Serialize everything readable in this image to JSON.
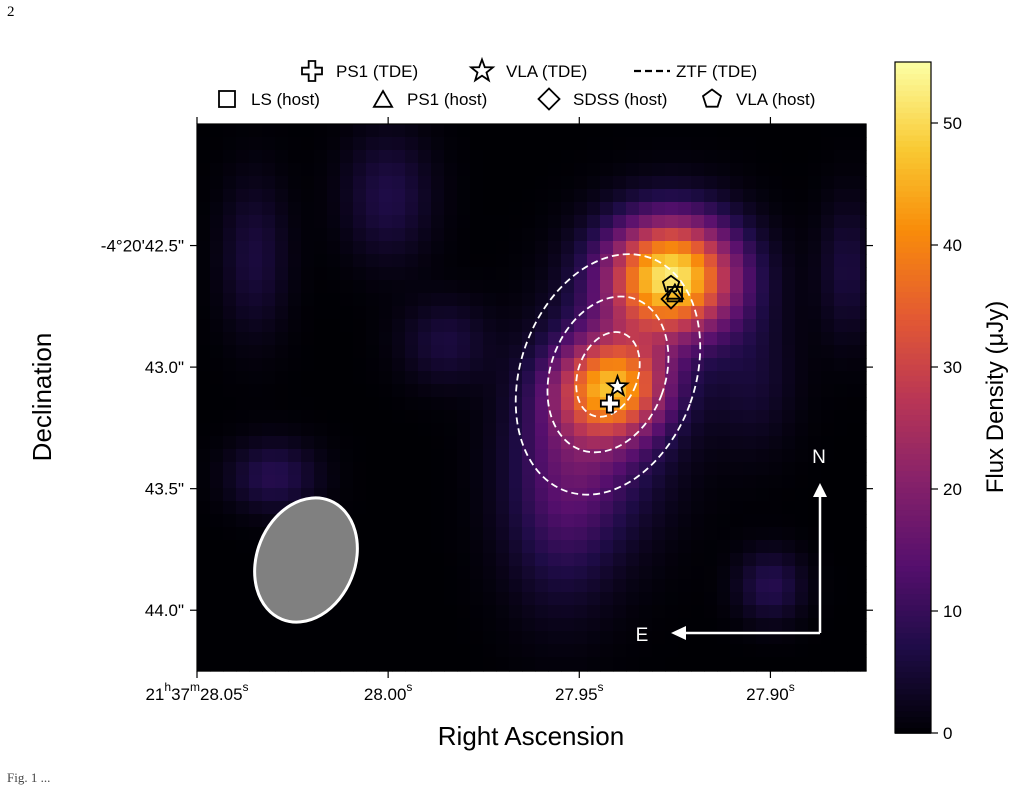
{
  "page": {
    "number": "2"
  },
  "caption": "Fig. 1 ...",
  "chart_data": {
    "type": "heatmap",
    "xlabel": "Right Ascension",
    "ylabel": "Declination",
    "x_ticks": [
      {
        "value": 28.05,
        "label_main": "21",
        "label_h": "h",
        "label_mid": "37",
        "label_m": "m",
        "label_sec": "28.05",
        "label_s": "s"
      },
      {
        "value": 28.0,
        "label_main": "",
        "label_h": "",
        "label_mid": "",
        "label_m": "",
        "label_sec": "28.00",
        "label_s": "s"
      },
      {
        "value": 27.95,
        "label_main": "",
        "label_h": "",
        "label_mid": "",
        "label_m": "",
        "label_sec": "27.95",
        "label_s": "s"
      },
      {
        "value": 27.9,
        "label_main": "",
        "label_h": "",
        "label_mid": "",
        "label_m": "",
        "label_sec": "27.90",
        "label_s": "s"
      }
    ],
    "y_ticks": [
      {
        "value": 42.5,
        "label": "-4°20'42.5\""
      },
      {
        "value": 43.0,
        "label": "43.0\""
      },
      {
        "value": 43.5,
        "label": "43.5\""
      },
      {
        "value": 44.0,
        "label": "44.0\""
      }
    ],
    "x_range_sec": [
      28.05,
      27.875
    ],
    "y_range_arcsec": [
      42.0,
      44.25
    ],
    "colorbar": {
      "label": "Flux Density (μJy)",
      "ticks": [
        0,
        10,
        20,
        30,
        40,
        50
      ],
      "range": [
        0,
        55
      ],
      "colormap": "inferno-like"
    },
    "sources": [
      {
        "ra": 27.941,
        "dec": 43.08,
        "amp": 36,
        "sx": 0.01,
        "sy": 0.14
      },
      {
        "ra": 27.926,
        "dec": 42.63,
        "amp": 52,
        "sx": 0.012,
        "sy": 0.17
      },
      {
        "ra": 27.945,
        "dec": 43.25,
        "amp": 12,
        "sx": 0.013,
        "sy": 0.3
      },
      {
        "ra": 27.955,
        "dec": 43.55,
        "amp": 9,
        "sx": 0.01,
        "sy": 0.3
      },
      {
        "ra": 28.0,
        "dec": 42.3,
        "amp": 7,
        "sx": 0.008,
        "sy": 0.18
      },
      {
        "ra": 28.035,
        "dec": 42.55,
        "amp": 6,
        "sx": 0.006,
        "sy": 0.22
      },
      {
        "ra": 28.03,
        "dec": 43.45,
        "amp": 8,
        "sx": 0.008,
        "sy": 0.1
      },
      {
        "ra": 27.9,
        "dec": 43.9,
        "amp": 8,
        "sx": 0.006,
        "sy": 0.1
      },
      {
        "ra": 27.88,
        "dec": 42.6,
        "amp": 6,
        "sx": 0.005,
        "sy": 0.2
      },
      {
        "ra": 27.985,
        "dec": 42.9,
        "amp": 6,
        "sx": 0.008,
        "sy": 0.12
      },
      {
        "ra": 27.905,
        "dec": 43.05,
        "amp": 5,
        "sx": 0.008,
        "sy": 0.2
      }
    ],
    "legend": {
      "row1": [
        {
          "marker": "plus",
          "label": "PS1 (TDE)"
        },
        {
          "marker": "star",
          "label": "VLA (TDE)"
        },
        {
          "marker": "dash",
          "label": "ZTF (TDE)"
        }
      ],
      "row2": [
        {
          "marker": "square",
          "label": "LS (host)"
        },
        {
          "marker": "triangle",
          "label": "PS1 (host)"
        },
        {
          "marker": "diamond",
          "label": "SDSS (host)"
        },
        {
          "marker": "pentagon",
          "label": "VLA (host)"
        }
      ]
    },
    "markers": [
      {
        "type": "plus",
        "ra": 27.942,
        "dec": 43.15
      },
      {
        "type": "star",
        "ra": 27.94,
        "dec": 43.08
      },
      {
        "type": "square",
        "ra": 27.925,
        "dec": 42.7
      },
      {
        "type": "triangle",
        "ra": 27.925,
        "dec": 42.69
      },
      {
        "type": "diamond",
        "ra": 27.926,
        "dec": 42.72
      },
      {
        "type": "pentagon",
        "ra": 27.926,
        "dec": 42.66
      }
    ],
    "ztf_ellipses": [
      {
        "ra": 27.9425,
        "dec": 43.03,
        "a_sec": 0.0078,
        "b_arcsec": 0.18
      },
      {
        "ra": 27.9425,
        "dec": 43.03,
        "a_sec": 0.015,
        "b_arcsec": 0.33
      },
      {
        "ra": 27.9425,
        "dec": 43.03,
        "a_sec": 0.0228,
        "b_arcsec": 0.51
      }
    ],
    "compass": {
      "north": "N",
      "east": "E"
    }
  },
  "colors": {
    "beam_fill": "#808080",
    "beam_edge": "#ffffff",
    "overlay": "#ffffff"
  }
}
